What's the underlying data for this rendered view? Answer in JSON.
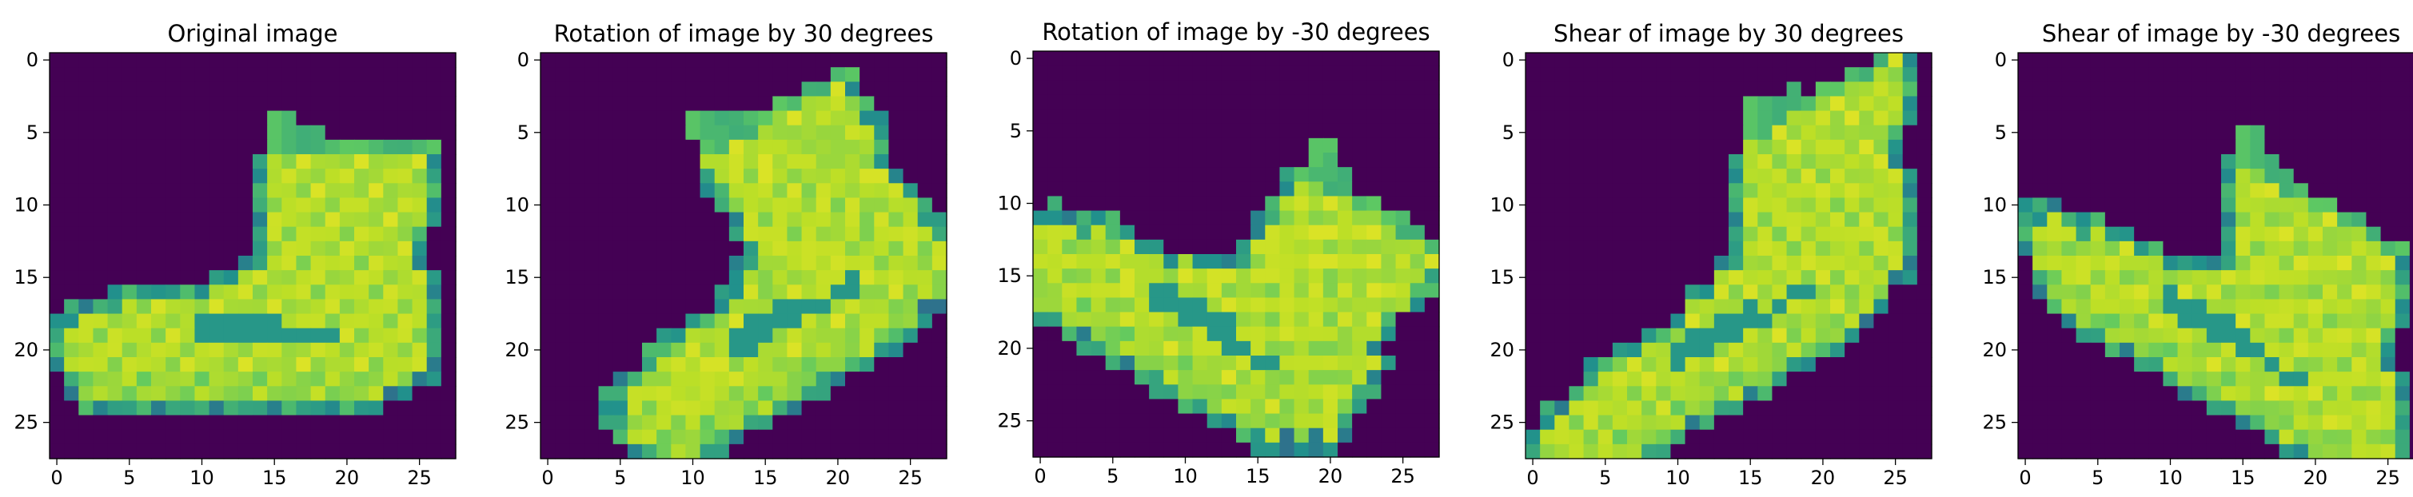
{
  "figure": {
    "colormap": [
      "#440154",
      "#3b528b",
      "#21918c",
      "#5ec962",
      "#bddf26",
      "#fde725"
    ]
  },
  "chart_data": [
    {
      "type": "heatmap",
      "title": "Original image",
      "grid": false,
      "xlim": [
        -0.5,
        27.5
      ],
      "ylim": [
        27.5,
        -0.5
      ],
      "xticks": [
        0,
        5,
        10,
        15,
        20,
        25
      ],
      "yticks": [
        0,
        5,
        10,
        15,
        20,
        25
      ],
      "xtick_labels": [
        "0",
        "5",
        "10",
        "15",
        "20",
        "25"
      ],
      "ytick_labels": [
        "0",
        "5",
        "10",
        "15",
        "20",
        "25"
      ],
      "transform": "none",
      "shape": [
        28,
        28
      ]
    },
    {
      "type": "heatmap",
      "title": "Rotation of image by 30 degrees",
      "grid": false,
      "xlim": [
        -0.5,
        27.5
      ],
      "ylim": [
        27.5,
        -0.5
      ],
      "xticks": [
        0,
        5,
        10,
        15,
        20,
        25
      ],
      "yticks": [
        0,
        5,
        10,
        15,
        20,
        25
      ],
      "xtick_labels": [
        "0",
        "5",
        "10",
        "15",
        "20",
        "25"
      ],
      "ytick_labels": [
        "0",
        "5",
        "10",
        "15",
        "20",
        "25"
      ],
      "transform": "rotate",
      "angle_degrees": 30,
      "shape": [
        28,
        28
      ]
    },
    {
      "type": "heatmap",
      "title": "Rotation of image by -30 degrees",
      "grid": false,
      "xlim": [
        -0.5,
        27.5
      ],
      "ylim": [
        27.5,
        -0.5
      ],
      "xticks": [
        0,
        5,
        10,
        15,
        20,
        25
      ],
      "yticks": [
        0,
        5,
        10,
        15,
        20,
        25
      ],
      "xtick_labels": [
        "0",
        "5",
        "10",
        "15",
        "20",
        "25"
      ],
      "ytick_labels": [
        "0",
        "5",
        "10",
        "15",
        "20",
        "25"
      ],
      "transform": "rotate",
      "angle_degrees": -30,
      "shape": [
        28,
        28
      ]
    },
    {
      "type": "heatmap",
      "title": "Shear of image by 30 degrees",
      "grid": false,
      "xlim": [
        -0.5,
        27.5
      ],
      "ylim": [
        27.5,
        -0.5
      ],
      "xticks": [
        0,
        5,
        10,
        15,
        20,
        25
      ],
      "yticks": [
        0,
        5,
        10,
        15,
        20,
        25
      ],
      "xtick_labels": [
        "0",
        "5",
        "10",
        "15",
        "20",
        "25"
      ],
      "ytick_labels": [
        "0",
        "5",
        "10",
        "15",
        "20",
        "25"
      ],
      "transform": "shear",
      "angle_degrees": 30,
      "shape": [
        28,
        28
      ]
    },
    {
      "type": "heatmap",
      "title": "Shear of image by -30 degrees",
      "grid": false,
      "xlim": [
        -0.5,
        27.5
      ],
      "ylim": [
        27.5,
        -0.5
      ],
      "xticks": [
        0,
        5,
        10,
        15,
        20,
        25
      ],
      "yticks": [
        0,
        5,
        10,
        15,
        20,
        25
      ],
      "xtick_labels": [
        "0",
        "5",
        "10",
        "15",
        "20",
        "25"
      ],
      "ytick_labels": [
        "0",
        "5",
        "10",
        "15",
        "20",
        "25"
      ],
      "transform": "shear",
      "angle_degrees": -30,
      "shape": [
        28,
        28
      ]
    }
  ]
}
